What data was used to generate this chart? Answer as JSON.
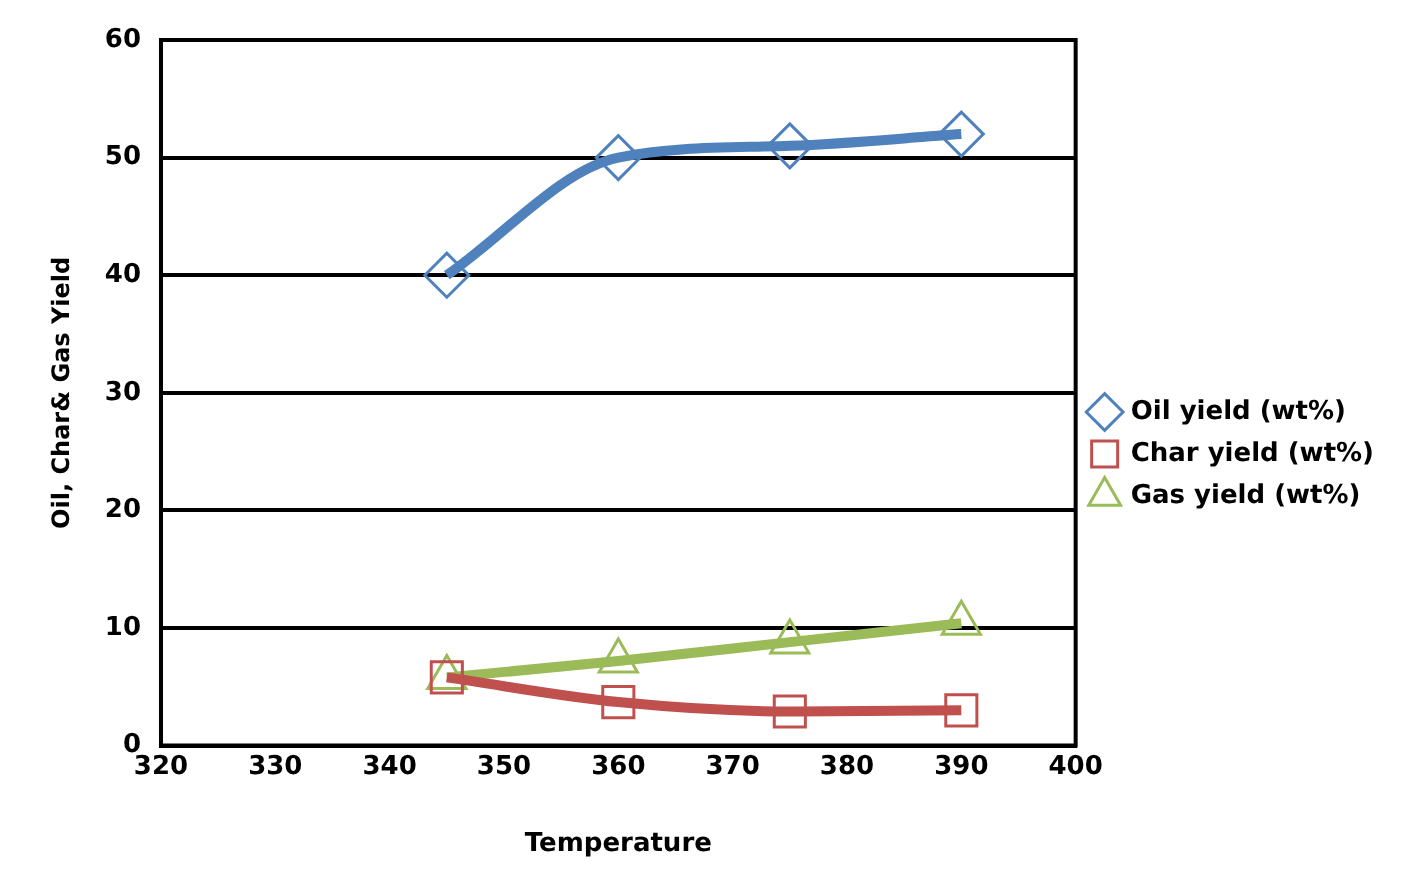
{
  "chart_data": {
    "type": "line",
    "xlabel": "Temperature",
    "ylabel": "Oil, Char& Gas Yield",
    "xlim": [
      320,
      400
    ],
    "xticks": [
      320,
      330,
      340,
      350,
      360,
      370,
      380,
      390,
      400
    ],
    "ylim": [
      0,
      60
    ],
    "yticks": [
      0,
      10,
      20,
      30,
      40,
      50,
      60
    ],
    "grid": "y",
    "legend": "right",
    "x": [
      345,
      360,
      375,
      390
    ],
    "series": [
      {
        "name": "Oil yield (wt%)",
        "color": "#4f81bd",
        "marker": "diamond",
        "values": [
          40,
          50,
          51,
          52
        ]
      },
      {
        "name": "Char yield (wt%)",
        "color": "#c0504d",
        "marker": "square",
        "values": [
          5.8,
          3.7,
          2.9,
          3
        ]
      },
      {
        "name": "Gas yield (wt%)",
        "color": "#9bbb59",
        "marker": "triangle",
        "values": [
          5.8,
          7.2,
          8.8,
          10.4
        ]
      }
    ]
  }
}
